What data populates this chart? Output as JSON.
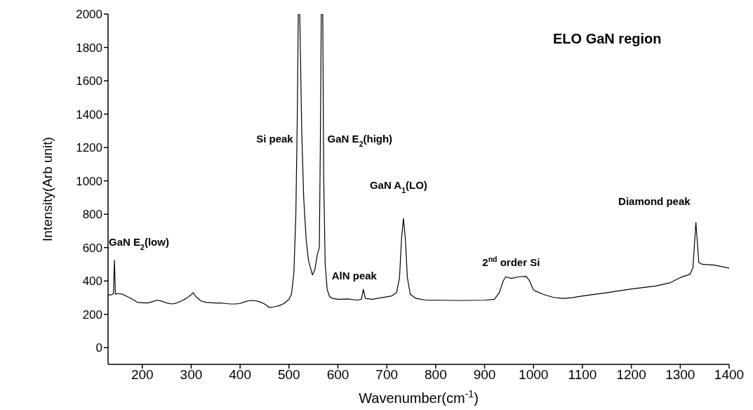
{
  "chart_data": {
    "type": "line",
    "title": "ELO GaN region",
    "xlabel": "Wavenumber(cm$^{-1}$)",
    "ylabel": "Intensity(Arb unit)",
    "xlim": [
      130,
      1400
    ],
    "xticks": [
      200,
      300,
      400,
      500,
      600,
      700,
      800,
      900,
      1000,
      1100,
      1200,
      1300,
      1400
    ],
    "ylim": [
      -100,
      2000
    ],
    "yticks": [
      0,
      200,
      400,
      600,
      800,
      1000,
      1200,
      1400,
      1600,
      1800,
      2000
    ],
    "grid": false,
    "legend": false,
    "marker": "none",
    "line_style": "solid",
    "series": [
      {
        "color": "#000000",
        "x": [
          130,
          138,
          141,
          143,
          145,
          150,
          160,
          170,
          180,
          190,
          200,
          210,
          220,
          230,
          240,
          250,
          260,
          270,
          280,
          290,
          300,
          304,
          310,
          320,
          330,
          340,
          350,
          360,
          370,
          380,
          390,
          400,
          410,
          420,
          430,
          440,
          450,
          460,
          470,
          480,
          490,
          500,
          505,
          510,
          514,
          517,
          519,
          522,
          526,
          530,
          535,
          540,
          548,
          553,
          558,
          562,
          564,
          566,
          569,
          571,
          574,
          578,
          583,
          590,
          600,
          620,
          640,
          648,
          652,
          656,
          670,
          690,
          710,
          720,
          726,
          730,
          734,
          738,
          742,
          748,
          760,
          780,
          800,
          850,
          900,
          920,
          930,
          938,
          943,
          955,
          970,
          985,
          992,
          1000,
          1020,
          1040,
          1060,
          1080,
          1100,
          1150,
          1200,
          1250,
          1280,
          1300,
          1320,
          1326,
          1332,
          1338,
          1345,
          1370,
          1400
        ],
        "values": [
          315,
          318,
          325,
          525,
          320,
          325,
          320,
          305,
          290,
          272,
          270,
          268,
          275,
          285,
          278,
          268,
          262,
          268,
          280,
          295,
          318,
          330,
          305,
          280,
          272,
          270,
          268,
          268,
          265,
          262,
          262,
          265,
          275,
          283,
          282,
          275,
          262,
          240,
          245,
          252,
          265,
          290,
          320,
          450,
          800,
          1400,
          2000,
          2000,
          1300,
          900,
          650,
          520,
          436,
          470,
          560,
          600,
          1200,
          2000,
          2000,
          1000,
          500,
          350,
          305,
          295,
          290,
          292,
          285,
          290,
          350,
          295,
          290,
          300,
          310,
          330,
          420,
          650,
          775,
          650,
          420,
          320,
          295,
          285,
          285,
          283,
          285,
          290,
          330,
          400,
          425,
          415,
          425,
          428,
          400,
          345,
          320,
          302,
          295,
          300,
          310,
          330,
          352,
          370,
          390,
          420,
          440,
          480,
          751,
          510,
          500,
          495,
          477
        ]
      }
    ],
    "annotations": [
      {
        "text": "GaN E$_{2}$(low)",
        "x": 143,
        "y": 525
      },
      {
        "text": "Si peak",
        "x": 517,
        "y": 1250
      },
      {
        "text": "GaN E$_{2}$(high)",
        "x": 570,
        "y": 1250
      },
      {
        "text": "AlN peak",
        "x": 652,
        "y": 350
      },
      {
        "text": "GaN A$_{1}$(LO)",
        "x": 734,
        "y": 775
      },
      {
        "text": "2$^{nd}$ order Si",
        "x": 970,
        "y": 425
      },
      {
        "text": "Diamond peak",
        "x": 1332,
        "y": 751
      }
    ]
  }
}
